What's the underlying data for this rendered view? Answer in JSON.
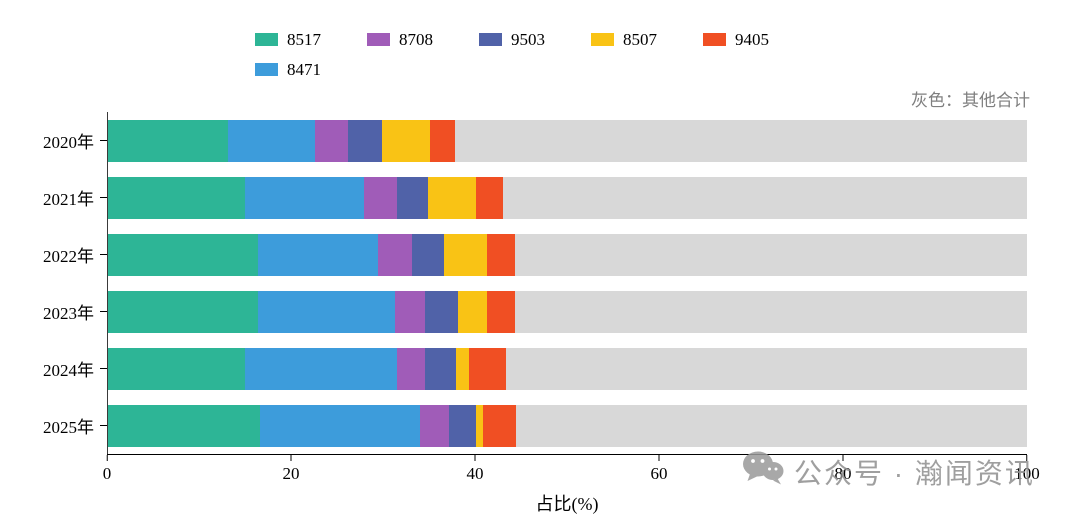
{
  "chart_data": {
    "type": "bar",
    "orientation": "horizontal",
    "stacked": true,
    "xlabel": "占比(%)",
    "xlim": [
      0,
      100
    ],
    "xticks": [
      0,
      20,
      40,
      60,
      80,
      100
    ],
    "grid": false,
    "legend_position": "top",
    "categories": [
      "2020年",
      "2021年",
      "2022年",
      "2023年",
      "2024年",
      "2025年"
    ],
    "series": [
      {
        "name": "8517",
        "color": "#2db596",
        "values": [
          13.2,
          15.0,
          16.4,
          16.4,
          15.0,
          16.6
        ]
      },
      {
        "name": "8471",
        "color": "#3d9cdb",
        "values": [
          9.4,
          12.9,
          13.1,
          14.9,
          16.5,
          17.4
        ]
      },
      {
        "name": "8708",
        "color": "#a05cb8",
        "values": [
          3.6,
          3.6,
          3.7,
          3.3,
          3.1,
          3.2
        ]
      },
      {
        "name": "9503",
        "color": "#5062a8",
        "values": [
          3.7,
          3.4,
          3.4,
          3.5,
          3.3,
          2.9
        ]
      },
      {
        "name": "8507",
        "color": "#f9c315",
        "values": [
          5.2,
          5.2,
          4.7,
          3.2,
          1.5,
          0.8
        ]
      },
      {
        "name": "9405",
        "color": "#f04f23",
        "values": [
          2.7,
          3.0,
          3.0,
          3.1,
          4.0,
          3.6
        ]
      }
    ],
    "other": {
      "label": "灰色：其他合计",
      "color": "#d8d8d8"
    },
    "legend": {
      "row1": [
        "8517",
        "8708",
        "9503",
        "8507",
        "9405"
      ],
      "row2": [
        "8471"
      ]
    }
  },
  "watermark": {
    "text": "公众号 · 瀚闻资讯"
  }
}
